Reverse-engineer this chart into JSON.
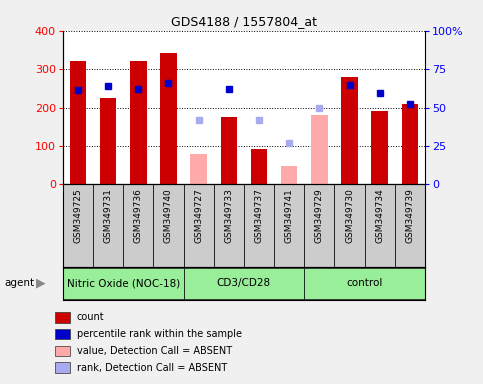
{
  "title": "GDS4188 / 1557804_at",
  "samples": [
    "GSM349725",
    "GSM349731",
    "GSM349736",
    "GSM349740",
    "GSM349727",
    "GSM349733",
    "GSM349737",
    "GSM349741",
    "GSM349729",
    "GSM349730",
    "GSM349734",
    "GSM349739"
  ],
  "bar_values": [
    320,
    225,
    320,
    342,
    null,
    175,
    93,
    null,
    null,
    280,
    190,
    210
  ],
  "bar_absent_values": [
    null,
    null,
    null,
    null,
    80,
    null,
    null,
    48,
    180,
    null,
    null,
    null
  ],
  "bar_color_present": "#cc0000",
  "bar_color_absent": "#ffaaaa",
  "percentile_present": [
    245,
    255,
    248,
    265,
    null,
    248,
    null,
    null,
    null,
    258,
    238,
    210
  ],
  "percentile_absent": [
    null,
    null,
    null,
    null,
    168,
    null,
    168,
    108,
    200,
    null,
    null,
    null
  ],
  "percentile_color_present": "#0000cc",
  "percentile_color_absent": "#aaaaee",
  "ylim_left": [
    0,
    400
  ],
  "ylim_right": [
    0,
    100
  ],
  "yticks_left": [
    0,
    100,
    200,
    300,
    400
  ],
  "yticks_right": [
    0,
    25,
    50,
    75,
    100
  ],
  "ytick_labels_right": [
    "0",
    "25",
    "50",
    "75",
    "100%"
  ],
  "groups": [
    {
      "name": "Nitric Oxide (NOC-18)",
      "start": 0,
      "end": 3
    },
    {
      "name": "CD3/CD28",
      "start": 4,
      "end": 7
    },
    {
      "name": "control",
      "start": 8,
      "end": 11
    }
  ],
  "group_bg_color": "#99ee99",
  "xlabels_bg": "#cccccc",
  "fig_bg": "#f0f0f0",
  "plot_bg": "#ffffff",
  "legend_items": [
    {
      "label": "count",
      "color": "#cc0000"
    },
    {
      "label": "percentile rank within the sample",
      "color": "#0000cc"
    },
    {
      "label": "value, Detection Call = ABSENT",
      "color": "#ffaaaa"
    },
    {
      "label": "rank, Detection Call = ABSENT",
      "color": "#aaaaee"
    }
  ]
}
